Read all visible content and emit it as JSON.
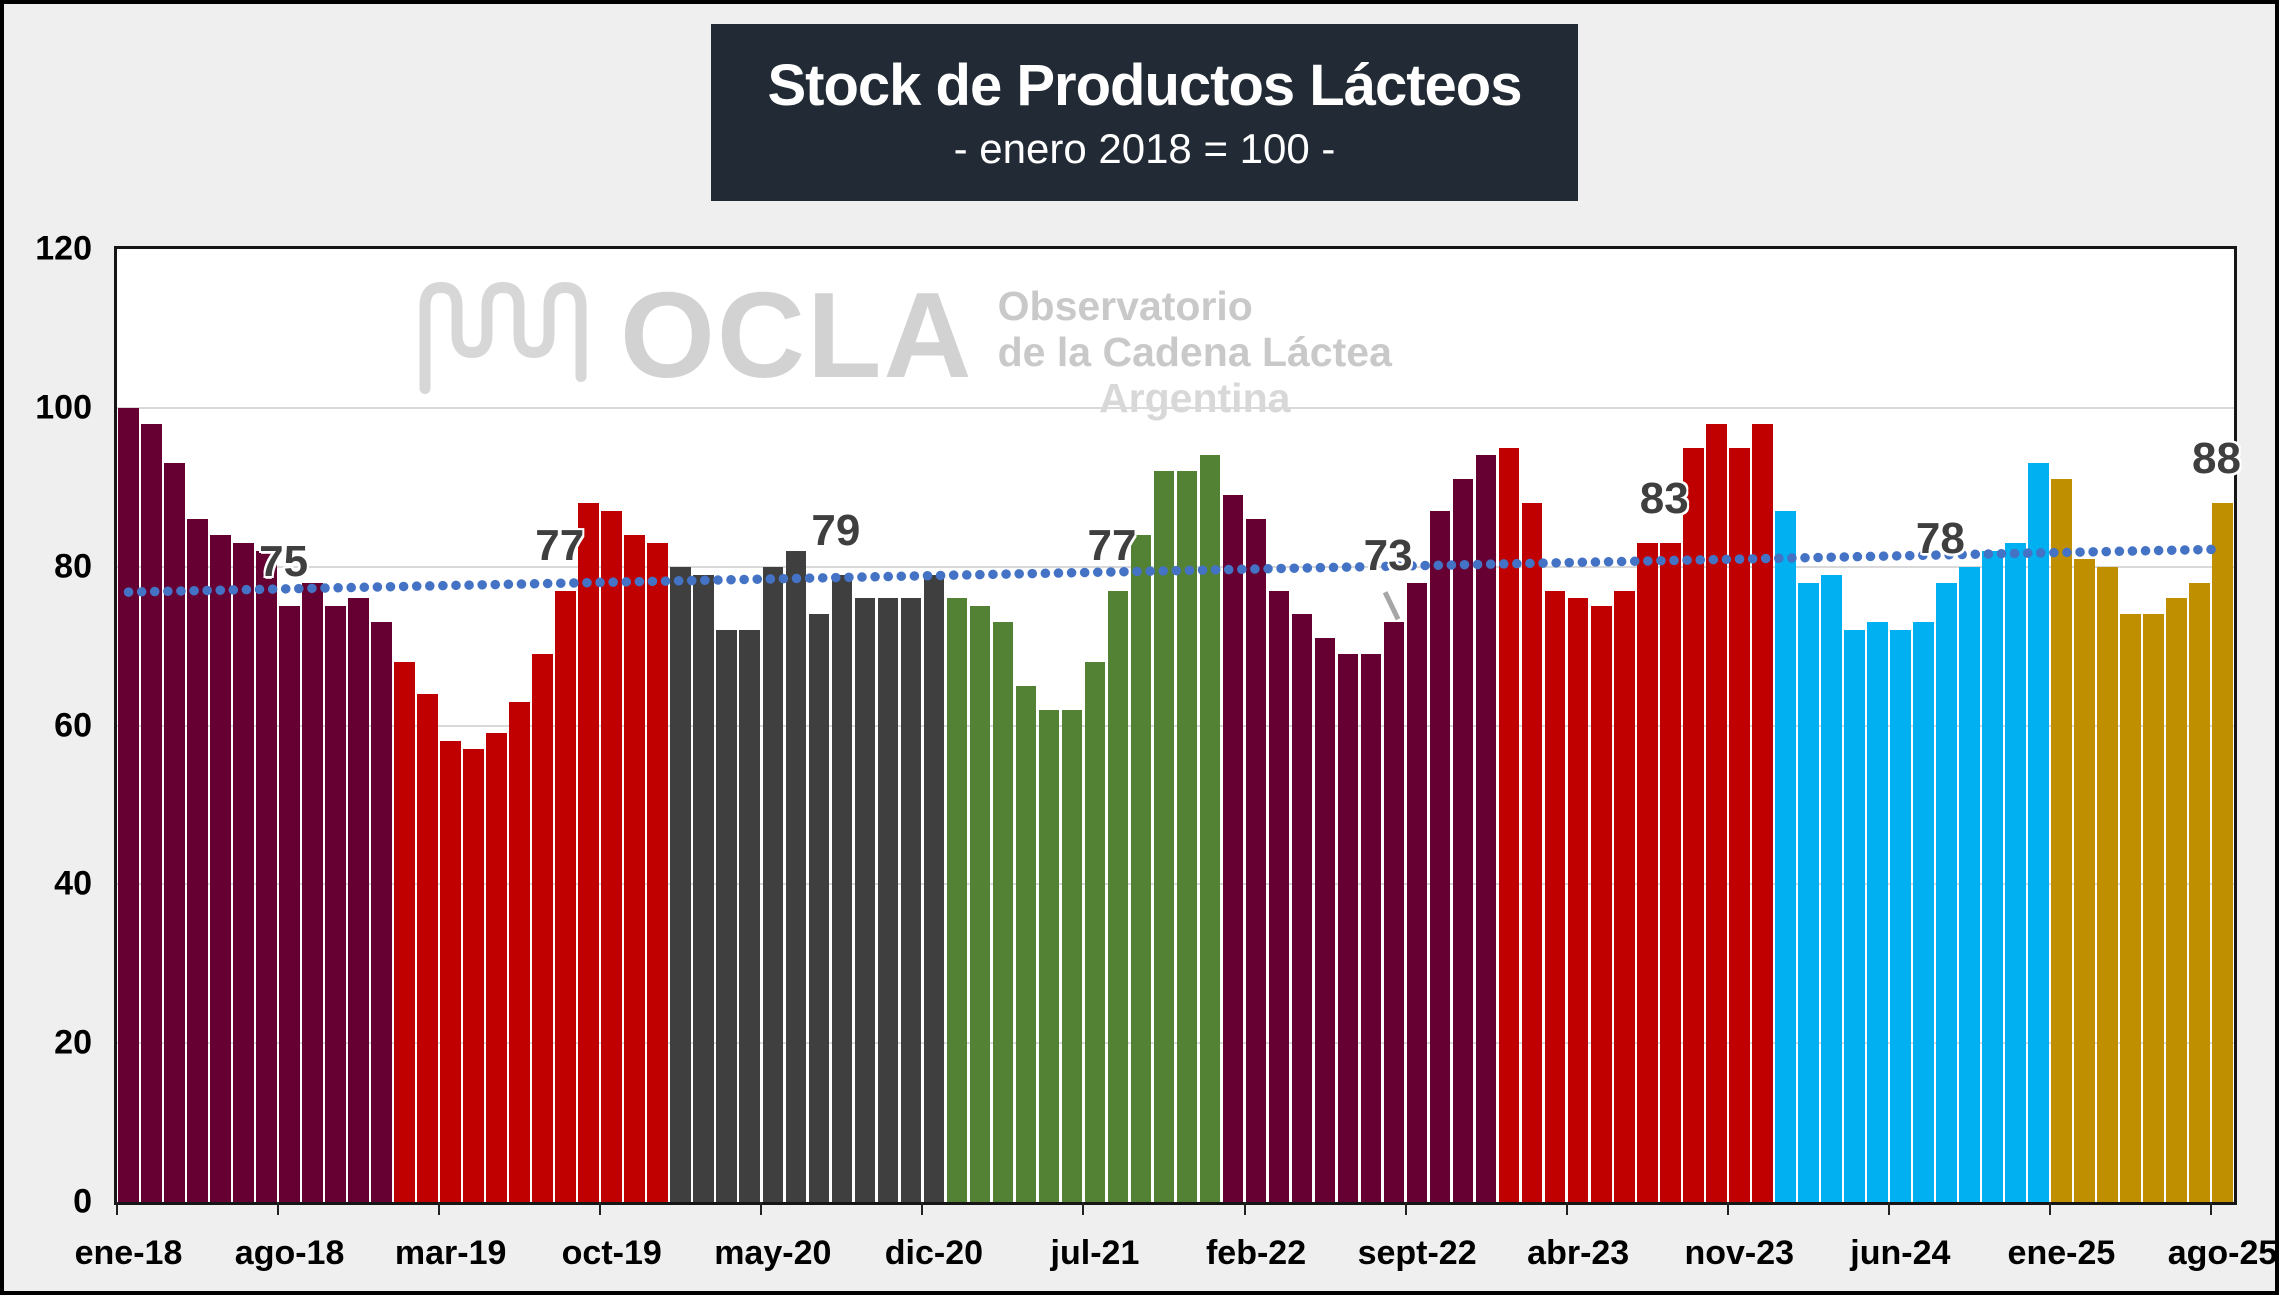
{
  "title": "Stock de Productos Lácteos",
  "subtitle": "- enero 2018 = 100 -",
  "watermark": {
    "brand": "OCLA",
    "line1": "Observatorio",
    "line2": "de la Cadena Láctea",
    "line3": "Argentina"
  },
  "colors": {
    "page_bg": "#efeff0",
    "title_bg": "#222b35",
    "title_text": "#ffffff",
    "plot_bg": "#ffffff",
    "gridline": "#d9d9d9",
    "axis": "#161616",
    "trend": "#4472c4",
    "data_label": "#3f3f3f",
    "watermark": "#d0d0d0"
  },
  "chart_data": {
    "type": "bar",
    "title": "Stock de Productos Lácteos",
    "subtitle": "- enero 2018 = 100 -",
    "xlabel": "",
    "ylabel": "",
    "ylim": [
      0,
      120
    ],
    "yticks": [
      0,
      20,
      40,
      60,
      80,
      100,
      120
    ],
    "grid": true,
    "legend": false,
    "month_names": [
      "ene",
      "feb",
      "mar",
      "abr",
      "may",
      "jun",
      "jul",
      "ago",
      "sep",
      "oct",
      "nov",
      "dic"
    ],
    "x_tick_labels": [
      "ene-18",
      "ago-18",
      "mar-19",
      "oct-19",
      "may-20",
      "dic-20",
      "jul-21",
      "feb-22",
      "sept-22",
      "abr-23",
      "nov-23",
      "jun-24",
      "ene-25",
      "ago-25"
    ],
    "x_label_interval_months": 7,
    "series": [
      {
        "name": "2018",
        "color": "#660033",
        "values": [
          100,
          98,
          93,
          86,
          84,
          83,
          82,
          75,
          78,
          75,
          76,
          73
        ]
      },
      {
        "name": "2019",
        "color": "#c00000",
        "values": [
          68,
          64,
          58,
          57,
          59,
          63,
          69,
          77,
          88,
          87,
          84,
          83
        ]
      },
      {
        "name": "2020",
        "color": "#3f3f3f",
        "values": [
          80,
          79,
          72,
          72,
          80,
          82,
          74,
          79,
          76,
          76,
          76,
          79
        ]
      },
      {
        "name": "2021",
        "color": "#548235",
        "values": [
          76,
          75,
          73,
          65,
          62,
          62,
          68,
          77,
          84,
          92,
          92,
          94
        ]
      },
      {
        "name": "2022",
        "color": "#660033",
        "values": [
          89,
          86,
          77,
          74,
          71,
          69,
          69,
          73,
          78,
          87,
          91,
          94
        ]
      },
      {
        "name": "2023",
        "color": "#c00000",
        "values": [
          95,
          88,
          77,
          76,
          75,
          77,
          83,
          83,
          95,
          98,
          95,
          98
        ]
      },
      {
        "name": "2024",
        "color": "#00b0f0",
        "values": [
          87,
          78,
          79,
          72,
          73,
          72,
          73,
          78,
          80,
          82,
          83,
          93
        ]
      },
      {
        "name": "2025",
        "color": "#bf8f00",
        "values": [
          91,
          81,
          80,
          74,
          74,
          76,
          78,
          88
        ]
      }
    ],
    "annotations": [
      {
        "label": "75",
        "month": "ago-18",
        "index": 7,
        "value": 75,
        "leader": false
      },
      {
        "label": "77",
        "month": "ago-19",
        "index": 19,
        "value": 77,
        "leader": false
      },
      {
        "label": "79",
        "month": "ago-20",
        "index": 31,
        "value": 79,
        "leader": false
      },
      {
        "label": "77",
        "month": "ago-21",
        "index": 43,
        "value": 77,
        "leader": false
      },
      {
        "label": "73",
        "month": "ago-22",
        "index": 55,
        "value": 73,
        "leader": true
      },
      {
        "label": "83",
        "month": "ago-23",
        "index": 67,
        "value": 83,
        "leader": false
      },
      {
        "label": "78",
        "month": "ago-24",
        "index": 79,
        "value": 78,
        "leader": false
      },
      {
        "label": "88",
        "month": "ago-25",
        "index": 91,
        "value": 88,
        "leader": false
      }
    ],
    "trend": {
      "style": "dotted",
      "color": "#4472c4",
      "start_value": 76.8,
      "end_value": 82.2
    }
  }
}
